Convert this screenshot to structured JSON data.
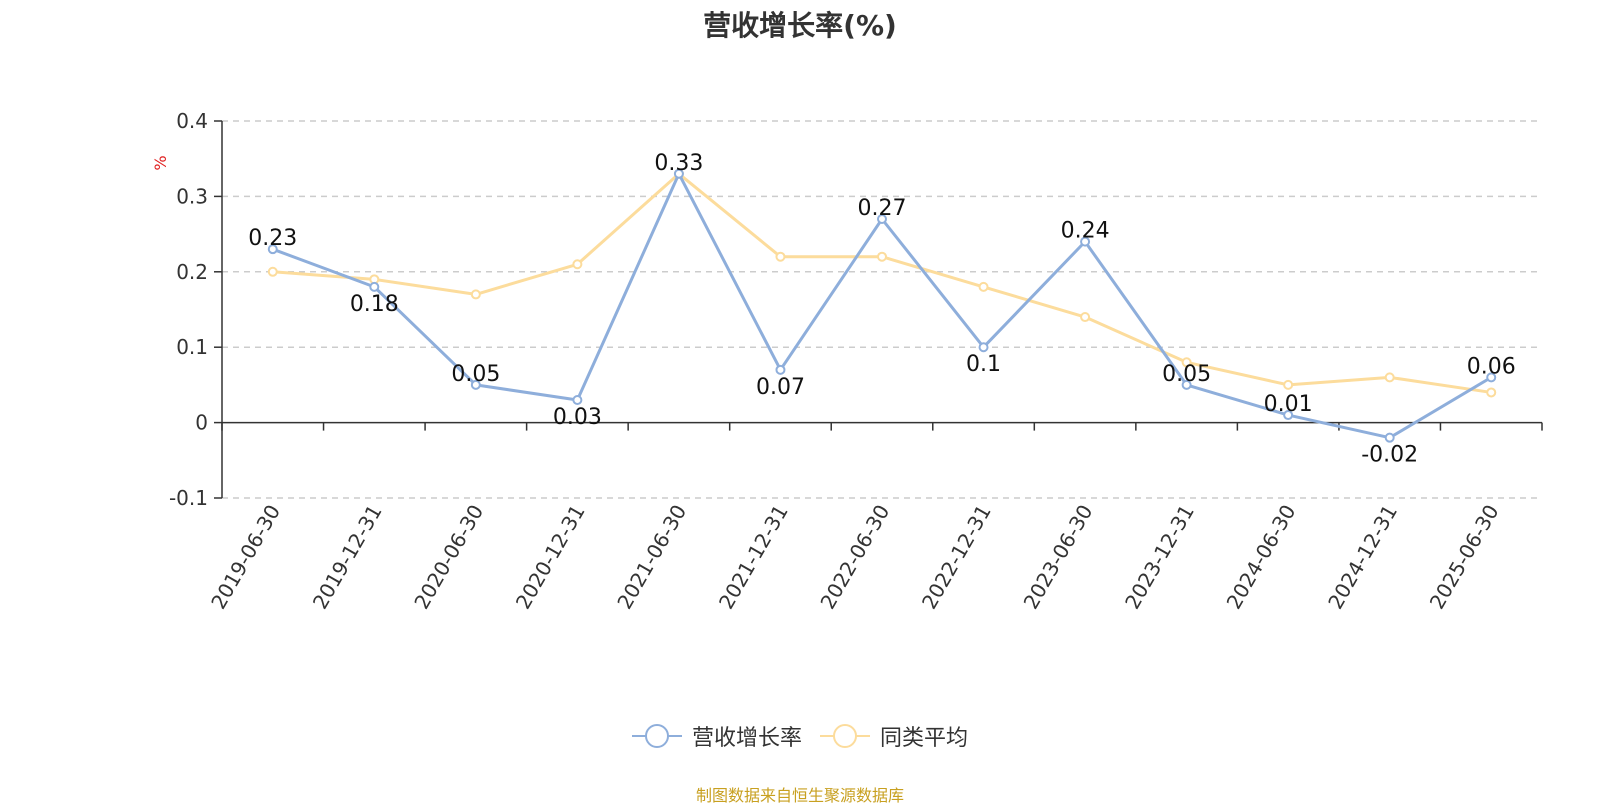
{
  "title": "营收增长率(%)",
  "source": "制图数据来自恒生聚源数据库",
  "chart_data": {
    "type": "line",
    "title": "营收增长率(%)",
    "ylabel": "%",
    "ylim": [
      -0.1,
      0.4
    ],
    "yticks": [
      -0.1,
      0,
      0.1,
      0.2,
      0.3,
      0.4
    ],
    "ytick_labels": [
      "-0.1",
      "0",
      "0.1",
      "0.2",
      "0.3",
      "0.4"
    ],
    "grid": true,
    "legend_position": "bottom-center",
    "categories": [
      "2019-06-30",
      "2019-12-31",
      "2020-06-30",
      "2020-12-31",
      "2021-06-30",
      "2021-12-31",
      "2022-06-30",
      "2022-12-31",
      "2023-06-30",
      "2023-12-31",
      "2024-06-30",
      "2024-12-31",
      "2025-06-30"
    ],
    "series": [
      {
        "name": "营收增长率",
        "color": "#8eaedb",
        "values": [
          0.23,
          0.18,
          0.05,
          0.03,
          0.33,
          0.07,
          0.27,
          0.1,
          0.24,
          0.05,
          0.01,
          -0.02,
          0.06
        ],
        "labels": [
          "0.23",
          "0.18",
          "0.05",
          "0.03",
          "0.33",
          "0.07",
          "0.27",
          "0.1",
          "0.24",
          "0.05",
          "0.01",
          "-0.02",
          "0.06"
        ]
      },
      {
        "name": "同类平均",
        "color": "#fcdc9c",
        "values": [
          0.2,
          0.19,
          0.17,
          0.21,
          0.33,
          0.22,
          0.22,
          0.18,
          0.14,
          0.08,
          0.05,
          0.06,
          0.04
        ]
      }
    ]
  }
}
